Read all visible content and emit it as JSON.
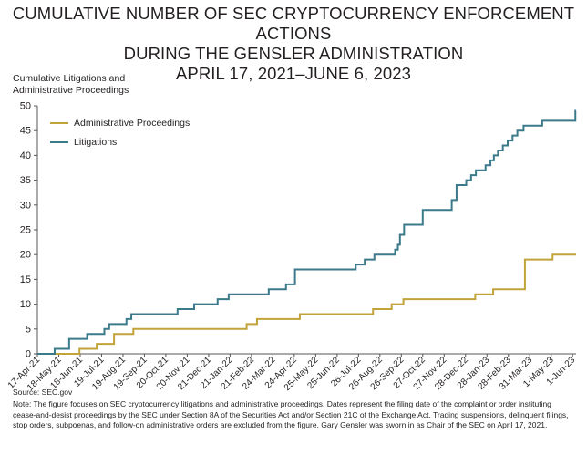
{
  "title": {
    "line1": "CUMULATIVE NUMBER OF SEC CRYPTOCURRENCY ENFORCEMENT ACTIONS",
    "line2": "DURING THE GENSLER ADMINISTRATION",
    "line3": "APRIL 17, 2021–JUNE 6, 2023"
  },
  "ylabel": {
    "line1": "Cumulative Litigations and",
    "line2": "Administrative Proceedings"
  },
  "source": "Source: SEC.gov",
  "note": "Note: The figure focuses on SEC cryptocurrency litigations and administrative proceedings. Dates represent the filing date of the complaint or order instituting cease-and-desist proceedings by the SEC under Section 8A of the Securities Act and/or Section 21C of the Exchange Act. Trading suspensions, delinquent filings, stop orders, subpoenas, and follow-on administrative orders are excluded from the figure. Gary Gensler was sworn in as Chair of the SEC on April 17, 2021.",
  "colors": {
    "admin": "#c2a33a",
    "litigation": "#3b7a8a",
    "axis": "#555555"
  },
  "chart_data": {
    "type": "line",
    "step": true,
    "title": "CUMULATIVE NUMBER OF SEC CRYPTOCURRENCY ENFORCEMENT ACTIONS DURING THE GENSLER ADMINISTRATION APRIL 17, 2021–JUNE 6, 2023",
    "ylabel": "Cumulative Litigations and Administrative Proceedings",
    "xlabel": "",
    "ylim": [
      0,
      50
    ],
    "yticks": [
      0,
      5,
      10,
      15,
      20,
      25,
      30,
      35,
      40,
      45,
      50
    ],
    "xlim": [
      "2021-04-17",
      "2023-06-06"
    ],
    "grid": false,
    "legend_position": "top-left",
    "xticks": [
      {
        "date": "2021-04-17",
        "label": "17-Apr-21"
      },
      {
        "date": "2021-05-18",
        "label": "18-May-21"
      },
      {
        "date": "2021-06-18",
        "label": "18-Jun-21"
      },
      {
        "date": "2021-07-19",
        "label": "19-Jul-21"
      },
      {
        "date": "2021-08-19",
        "label": "19-Aug-21"
      },
      {
        "date": "2021-09-19",
        "label": "19-Sep-21"
      },
      {
        "date": "2021-10-20",
        "label": "20-Oct-21"
      },
      {
        "date": "2021-11-20",
        "label": "20-Nov-21"
      },
      {
        "date": "2021-12-21",
        "label": "21-Dec-21"
      },
      {
        "date": "2022-01-21",
        "label": "21-Jan-22"
      },
      {
        "date": "2022-02-21",
        "label": "21-Feb-22"
      },
      {
        "date": "2022-03-24",
        "label": "24-Mar-22"
      },
      {
        "date": "2022-04-24",
        "label": "24-Apr-22"
      },
      {
        "date": "2022-05-25",
        "label": "25-May-22"
      },
      {
        "date": "2022-06-25",
        "label": "25-Jun-22"
      },
      {
        "date": "2022-07-26",
        "label": "26-Jul-22"
      },
      {
        "date": "2022-08-26",
        "label": "26-Aug-22"
      },
      {
        "date": "2022-09-26",
        "label": "26-Sep-22"
      },
      {
        "date": "2022-10-27",
        "label": "27-Oct-22"
      },
      {
        "date": "2022-11-27",
        "label": "27-Nov-22"
      },
      {
        "date": "2022-12-28",
        "label": "28-Dec-22"
      },
      {
        "date": "2023-01-28",
        "label": "28-Jan-23"
      },
      {
        "date": "2023-02-28",
        "label": "28-Feb-23"
      },
      {
        "date": "2023-03-31",
        "label": "31-Mar-23"
      },
      {
        "date": "2023-05-01",
        "label": "1-May-23"
      },
      {
        "date": "2023-06-01",
        "label": "1-Jun-23"
      }
    ],
    "series": [
      {
        "name": "Administrative Proceedings",
        "points": [
          [
            "2021-04-17",
            0
          ],
          [
            "2021-06-17",
            1
          ],
          [
            "2021-07-12",
            2
          ],
          [
            "2021-08-06",
            4
          ],
          [
            "2021-09-03",
            5
          ],
          [
            "2022-02-14",
            6
          ],
          [
            "2022-03-01",
            7
          ],
          [
            "2022-05-02",
            8
          ],
          [
            "2022-08-16",
            9
          ],
          [
            "2022-09-12",
            10
          ],
          [
            "2022-09-29",
            11
          ],
          [
            "2023-01-11",
            12
          ],
          [
            "2023-02-06",
            13
          ],
          [
            "2023-03-24",
            19
          ],
          [
            "2023-05-03",
            20
          ],
          [
            "2023-06-06",
            20
          ]
        ]
      },
      {
        "name": "Litigations",
        "points": [
          [
            "2021-04-17",
            0
          ],
          [
            "2021-05-12",
            1
          ],
          [
            "2021-06-02",
            3
          ],
          [
            "2021-06-28",
            4
          ],
          [
            "2021-07-23",
            5
          ],
          [
            "2021-07-30",
            6
          ],
          [
            "2021-08-24",
            7
          ],
          [
            "2021-08-31",
            8
          ],
          [
            "2021-11-06",
            9
          ],
          [
            "2021-11-30",
            10
          ],
          [
            "2022-01-03",
            11
          ],
          [
            "2022-01-19",
            12
          ],
          [
            "2022-03-18",
            13
          ],
          [
            "2022-04-12",
            14
          ],
          [
            "2022-04-25",
            17
          ],
          [
            "2022-07-22",
            18
          ],
          [
            "2022-08-04",
            19
          ],
          [
            "2022-08-18",
            20
          ],
          [
            "2022-09-17",
            21
          ],
          [
            "2022-09-21",
            22
          ],
          [
            "2022-09-24",
            24
          ],
          [
            "2022-09-30",
            26
          ],
          [
            "2022-10-27",
            29
          ],
          [
            "2022-12-08",
            31
          ],
          [
            "2022-12-15",
            34
          ],
          [
            "2022-12-29",
            35
          ],
          [
            "2023-01-05",
            36
          ],
          [
            "2023-01-12",
            37
          ],
          [
            "2023-01-26",
            38
          ],
          [
            "2023-02-02",
            39
          ],
          [
            "2023-02-07",
            40
          ],
          [
            "2023-02-13",
            41
          ],
          [
            "2023-02-20",
            42
          ],
          [
            "2023-02-27",
            43
          ],
          [
            "2023-03-06",
            44
          ],
          [
            "2023-03-13",
            45
          ],
          [
            "2023-03-22",
            46
          ],
          [
            "2023-04-18",
            47
          ],
          [
            "2023-06-05",
            49
          ],
          [
            "2023-06-06",
            49
          ]
        ]
      }
    ]
  }
}
